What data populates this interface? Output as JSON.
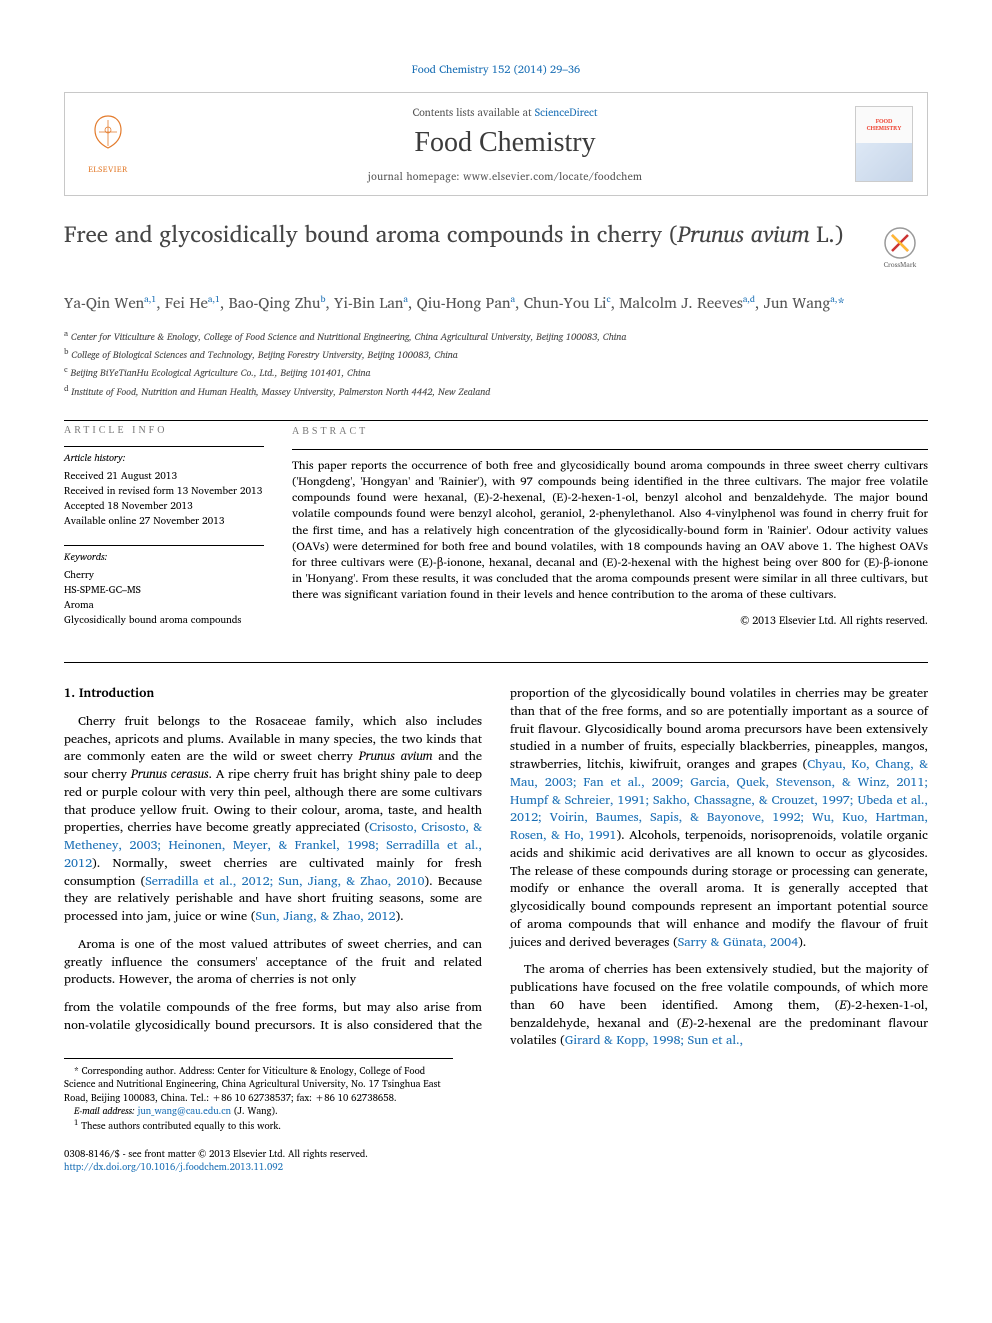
{
  "header": {
    "citation_link": "Food Chemistry 152 (2014) 29–36",
    "contents_prefix": "Contents lists available at ",
    "contents_link": "ScienceDirect",
    "journal": "Food Chemistry",
    "home_prefix": "journal homepage: ",
    "home_url": "www.elsevier.com/locate/foodchem",
    "elsevier_word": "ELSEVIER",
    "cover_text": "FOOD CHEMISTRY",
    "crossmark": "CrossMark"
  },
  "title": {
    "pre": "Free and glycosidically bound aroma compounds in cherry (",
    "ital": "Prunus avium",
    "post": " L.)"
  },
  "authors_html": "Ya-Qin Wen<sup>a,1</sup>, Fei He<sup>a,1</sup>, Bao-Qing Zhu<sup>b</sup>, Yi-Bin Lan<sup>a</sup>, Qiu-Hong Pan<sup>a</sup>, Chun-You Li<sup>c</sup>, Malcolm J. Reeves<sup>a,d</sup>, Jun Wang<sup>a,</sup><span class=\"ast\">*</span>",
  "affiliations": [
    {
      "sup": "a",
      "text": "Center for Viticulture & Enology, College of Food Science and Nutritional Engineering, China Agricultural University, Beijing 100083, China"
    },
    {
      "sup": "b",
      "text": "College of Biological Sciences and Technology, Beijing Forestry University, Beijing 100083, China"
    },
    {
      "sup": "c",
      "text": "Beijing BiYeTianHu Ecological Agriculture Co., Ltd., Beijing 101401, China"
    },
    {
      "sup": "d",
      "text": "Institute of Food, Nutrition and Human Health, Massey University, Palmerston North 4442, New Zealand"
    }
  ],
  "info": {
    "label": "article info",
    "history_heading": "Article history:",
    "history": [
      "Received 21 August 2013",
      "Received in revised form 13 November 2013",
      "Accepted 18 November 2013",
      "Available online 27 November 2013"
    ],
    "keywords_heading": "Keywords:",
    "keywords": [
      "Cherry",
      "HS-SPME-GC–MS",
      "Aroma",
      "Glycosidically bound aroma compounds"
    ]
  },
  "abstract": {
    "label": "abstract",
    "text": "This paper reports the occurrence of both free and glycosidically bound aroma compounds in three sweet cherry cultivars ('Hongdeng', 'Hongyan' and 'Rainier'), with 97 compounds being identified in the three cultivars. The major free volatile compounds found were hexanal, (E)-2-hexenal, (E)-2-hexen-1-ol, benzyl alcohol and benzaldehyde. The major bound volatile compounds found were benzyl alcohol, geraniol, 2-phenylethanol. Also 4-vinylphenol was found in cherry fruit for the first time, and has a relatively high concentration of the glycosidically-bound form in 'Rainier'. Odour activity values (OAVs) were determined for both free and bound volatiles, with 18 compounds having an OAV above 1. The highest OAVs for three cultivars were (E)-β-ionone, hexanal, decanal and (E)-2-hexenal with the highest being over 800 for (E)-β-ionone in 'Honyang'. From these results, it was concluded that the aroma compounds present were similar in all three cultivars, but there was significant variation found in their levels and hence contribution to the aroma of these cultivars.",
    "copyright": "© 2013 Elsevier Ltd. All rights reserved."
  },
  "body": {
    "heading": "1. Introduction",
    "p1_a": "Cherry fruit belongs to the Rosaceae family, which also includes peaches, apricots and plums. Available in many species, the two kinds that are commonly eaten are the wild or sweet cherry ",
    "p1_i1": "Prunus avium",
    "p1_b": " and the sour cherry ",
    "p1_i2": "Prunus cerasus",
    "p1_c": ". A ripe cherry fruit has bright shiny pale to deep red or purple colour with very thin peel, although there are some cultivars that produce yellow fruit. Owing to their colour, aroma, taste, and health properties, cherries have become greatly appreciated (",
    "p1_cite1": "Crisosto, Crisosto, & Metheney, 2003; Heinonen, Meyer, & Frankel, 1998; Serradilla et al., 2012",
    "p1_d": "). Normally, sweet cherries are cultivated mainly for fresh consumption (",
    "p1_cite2": "Serradilla et al., 2012; Sun, Jiang, & Zhao, 2010",
    "p1_e": "). Because they are relatively perishable and have short fruiting seasons, some are processed into jam, juice or wine (",
    "p1_cite3": "Sun, Jiang, & Zhao, 2012",
    "p1_f": ").",
    "p2": "Aroma is one of the most valued attributes of sweet cherries, and can greatly influence the consumers' acceptance of the fruit and related products. However, the aroma of cherries is not only",
    "p3_a": "from the volatile compounds of the free forms, but may also arise from non-volatile glycosidically bound precursors. It is also considered that the proportion of the glycosidically bound volatiles in cherries may be greater than that of the free forms, and so are potentially important as a source of fruit flavour. Glycosidically bound aroma precursors have been extensively studied in a number of fruits, especially blackberries, pineapples, mangos, strawberries, litchis, kiwifruit, oranges and grapes (",
    "p3_cite1": "Chyau, Ko, Chang, & Mau, 2003; Fan et al., 2009; Garcia, Quek, Stevenson, & Winz, 2011; Humpf & Schreier, 1991; Sakho, Chassagne, & Crouzet, 1997; Ubeda et al., 2012; Voirin, Baumes, Sapis, & Bayonove, 1992; Wu, Kuo, Hartman, Rosen, & Ho, 1991",
    "p3_b": "). Alcohols, terpenoids, norisoprenoids, volatile organic acids and shikimic acid derivatives are all known to occur as glycosides. The release of these compounds during storage or processing can generate, modify or enhance the overall aroma. It is generally accepted that glycosidically bound compounds represent an important potential source of aroma compounds that will enhance and modify the flavour of fruit juices and derived beverages (",
    "p3_cite2": "Sarry & Günata, 2004",
    "p3_c": ").",
    "p4_a": "The aroma of cherries has been extensively studied, but the majority of publications have focused on the free volatile compounds, of which more than 60 have been identified. Among them, (",
    "p4_i": "E",
    "p4_b": ")-2-hexen-1-ol, benzaldehyde, hexanal and (",
    "p4_i2": "E",
    "p4_c": ")-2-hexenal are the predominant flavour volatiles (",
    "p4_cite": "Girard & Kopp, 1998; Sun et al.,"
  },
  "footnotes": {
    "corr": "* Corresponding author. Address: Center for Viticulture & Enology, College of Food Science and Nutritional Engineering, China Agricultural University, No. 17 Tsinghua East Road, Beijing 100083, China. Tel.: +86 10 62738537; fax: +86 10 62738658.",
    "email_label": "E-mail address: ",
    "email": "jun_wang@cau.edu.cn",
    "email_suffix": " (J. Wang).",
    "shared": "These authors contributed equally to this work.",
    "shared_sup": "1"
  },
  "doi": {
    "line1": "0308-8146/$ - see front matter © 2013 Elsevier Ltd. All rights reserved.",
    "line2": "http://dx.doi.org/10.1016/j.foodchem.2013.11.092"
  },
  "colors": {
    "link": "#1a6fb5",
    "text": "#000000",
    "muted": "#555555",
    "elsevier": "#e37b2c"
  }
}
